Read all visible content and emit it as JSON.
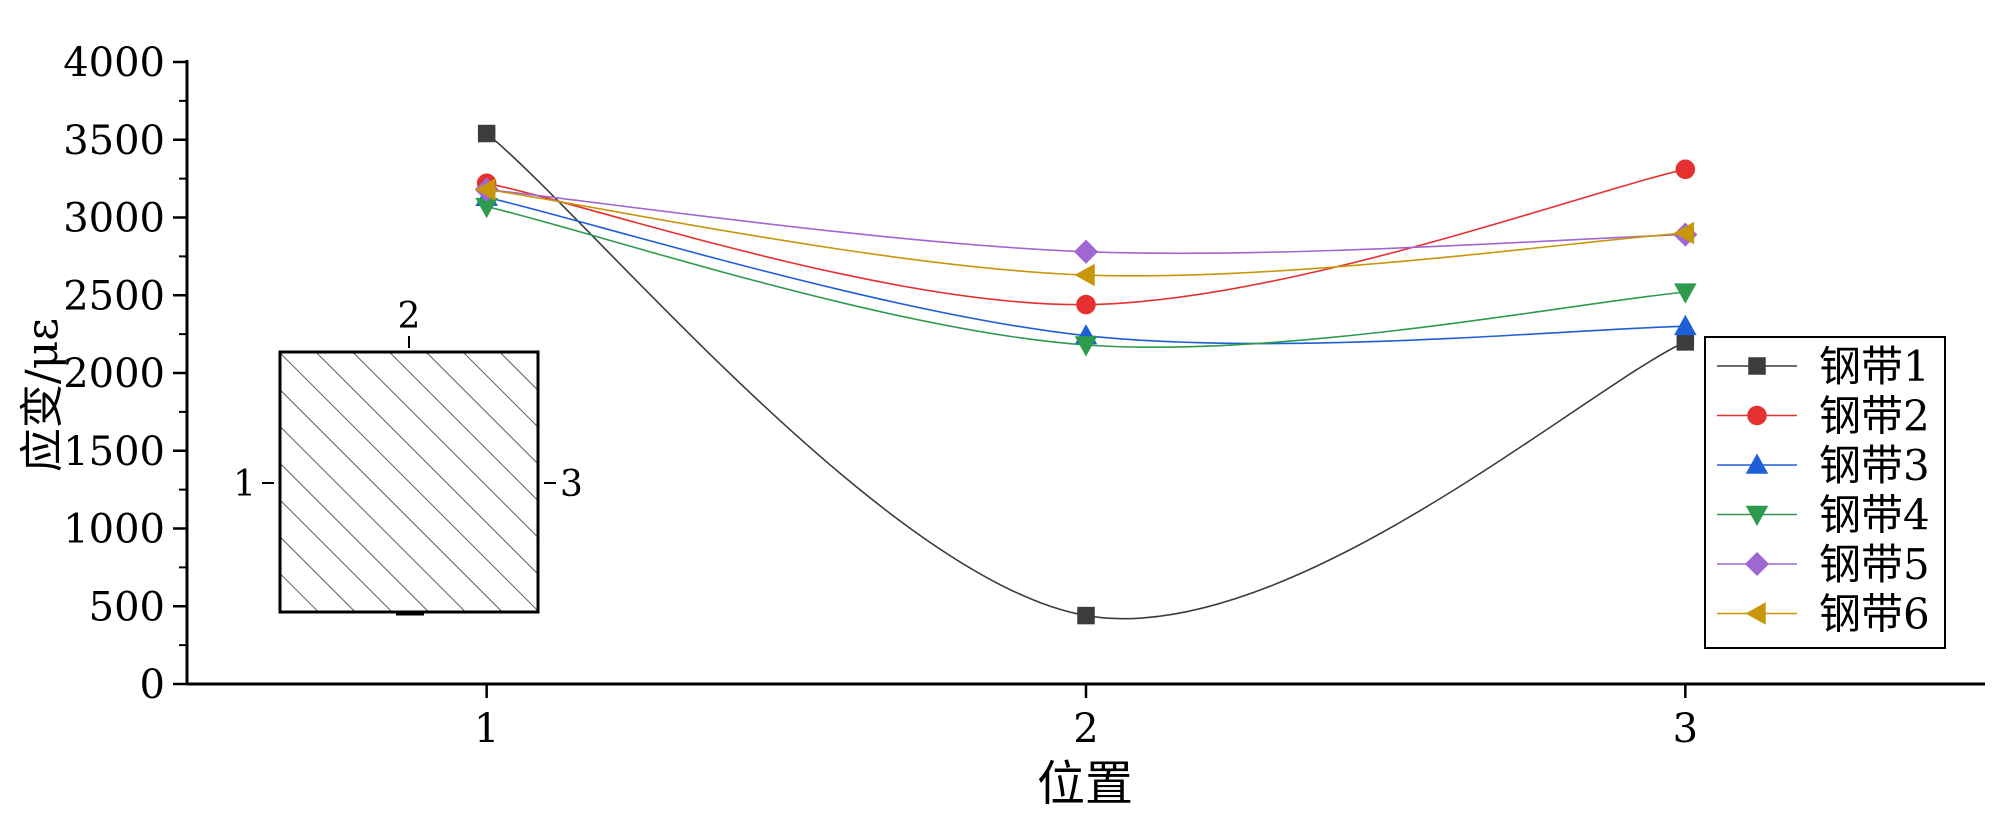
{
  "chart_data": {
    "type": "line",
    "xlabel": "位置",
    "ylabel": "应变/με",
    "x_ticks": [
      "1",
      "2",
      "3"
    ],
    "x_values": [
      1,
      2,
      3
    ],
    "xlim": [
      0.5,
      3.5
    ],
    "ylim": [
      0,
      4000
    ],
    "y_ticks": [
      0,
      500,
      1000,
      1500,
      2000,
      2500,
      3000,
      3500,
      4000
    ],
    "grid": false,
    "legend_position": "right",
    "series": [
      {
        "name": "钢带1",
        "values": [
          3540,
          440,
          2200
        ],
        "color": "#3c3c3c",
        "marker": "square"
      },
      {
        "name": "钢带2",
        "values": [
          3220,
          2440,
          3310
        ],
        "color": "#e63030",
        "marker": "circle"
      },
      {
        "name": "钢带3",
        "values": [
          3130,
          2240,
          2300
        ],
        "color": "#1f5fd6",
        "marker": "triangle-up"
      },
      {
        "name": "钢带4",
        "values": [
          3070,
          2180,
          2520
        ],
        "color": "#2e9a4e",
        "marker": "triangle-down"
      },
      {
        "name": "钢带5",
        "values": [
          3180,
          2780,
          2890
        ],
        "color": "#a066d3",
        "marker": "diamond"
      },
      {
        "name": "钢带6",
        "values": [
          3180,
          2630,
          2900
        ],
        "color": "#c8960a",
        "marker": "triangle-left"
      }
    ],
    "inset": {
      "description_icon": "hatched-square-cross-section",
      "labels": [
        "1",
        "2",
        "3"
      ]
    }
  }
}
